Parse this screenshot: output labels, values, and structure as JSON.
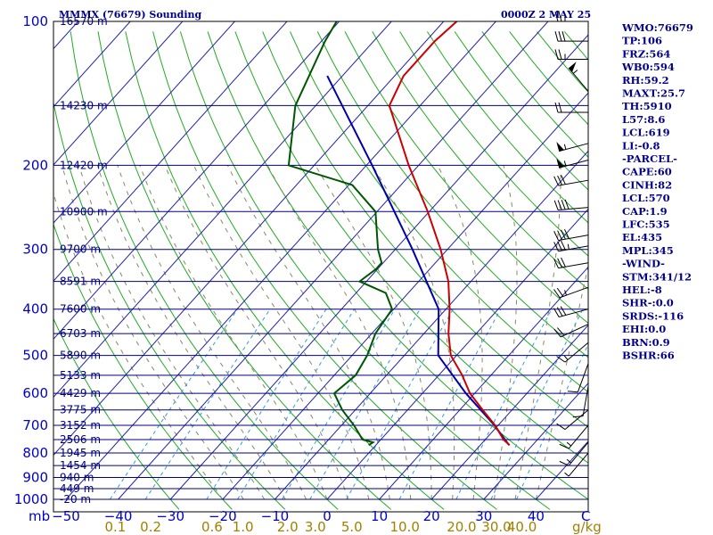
{
  "header": {
    "title": "MMMX (76679) Sounding",
    "time": "0000Z  2 MAY 25"
  },
  "indices": [
    "WMO:76679",
    "TP:106",
    "FRZ:564",
    "WB0:594",
    "RH:59.2",
    "MAXT:25.7",
    "TH:5910",
    "L57:8.6",
    "LCL:619",
    "LI:-0.8",
    "-PARCEL-",
    "CAPE:60",
    "CINH:82",
    "LCL:570",
    "CAP:1.9",
    "LFC:535",
    "EL:435",
    "MPL:345",
    "-WIND-",
    "STM:341/12",
    "HEL:-8",
    "SHR-:0.0",
    "SRDS:-116",
    "EHI:0.0",
    "BRN:0.9",
    "BSHR:66"
  ],
  "colors": {
    "frame": "#000000",
    "isobar": "#000080",
    "isotherm": "#2222aa",
    "dry_adiabat": "#22aa22",
    "moist_adiabat": "#888866",
    "mixing_ratio": "#3399dd",
    "temperature": "#cc0000",
    "dewpoint": "#005500",
    "parcel": "#0000aa"
  },
  "chart_data": {
    "type": "skew-t",
    "title": "MMMX (76679) Sounding",
    "time": "0000Z  2 MAY 25",
    "yaxis_unit": "mb",
    "pressure_levels": [
      100,
      200,
      300,
      400,
      500,
      600,
      700,
      800,
      900,
      1000
    ],
    "pressure_ticklabels": [
      "100",
      "200",
      "300",
      "400",
      "500",
      "600",
      "700",
      "800",
      "900",
      "1000"
    ],
    "temperature_ticks": [
      -50,
      -40,
      -30,
      -20,
      -10,
      0,
      10,
      20,
      30,
      40
    ],
    "temperature_ticklabels": [
      "−50",
      "−40",
      "−30",
      "−20",
      "−10",
      "0",
      "10",
      "20",
      "30",
      "40"
    ],
    "temperature_end_label": "C",
    "mixing_ratio_ticks": [
      "0.1",
      "0.2",
      "0.6",
      "1.0",
      "2.0",
      "3.0",
      "5.0",
      "10.0",
      "20.0",
      "30.0",
      "40.0"
    ],
    "mixing_ratio_unit": "g/kg",
    "heights": [
      {
        "p": 100,
        "label": "16570 m"
      },
      {
        "p": 150,
        "label": "14230 m"
      },
      {
        "p": 200,
        "label": "12420 m"
      },
      {
        "p": 250,
        "label": "10900 m"
      },
      {
        "p": 300,
        "label": "9700 m"
      },
      {
        "p": 350,
        "label": "8591 m"
      },
      {
        "p": 400,
        "label": "7600 m"
      },
      {
        "p": 450,
        "label": "6703 m"
      },
      {
        "p": 500,
        "label": "5890 m"
      },
      {
        "p": 550,
        "label": "5133 m"
      },
      {
        "p": 600,
        "label": "4429 m"
      },
      {
        "p": 650,
        "label": "3775 m"
      },
      {
        "p": 700,
        "label": "3152 m"
      },
      {
        "p": 750,
        "label": "2506 m"
      },
      {
        "p": 800,
        "label": "1945 m"
      },
      {
        "p": 850,
        "label": "1454 m"
      },
      {
        "p": 900,
        "label": "940 m"
      },
      {
        "p": 950,
        "label": "449 m"
      },
      {
        "p": 1000,
        "label": "-20 m"
      }
    ],
    "temperature": [
      [
        770,
        25.6
      ],
      [
        750,
        23.5
      ],
      [
        700,
        19.4
      ],
      [
        650,
        14.4
      ],
      [
        600,
        9.1
      ],
      [
        550,
        4.5
      ],
      [
        500,
        -1.1
      ],
      [
        450,
        -5.3
      ],
      [
        400,
        -9.3
      ],
      [
        350,
        -14.3
      ],
      [
        300,
        -21.3
      ],
      [
        250,
        -30.3
      ],
      [
        200,
        -41.9
      ],
      [
        150,
        -55.9
      ],
      [
        130,
        -58.3
      ],
      [
        110,
        -58.3
      ],
      [
        100,
        -57.5
      ]
    ],
    "dewpoint": [
      [
        770,
        -1.4
      ],
      [
        760,
        -1.0
      ],
      [
        750,
        -3.5
      ],
      [
        700,
        -7.6
      ],
      [
        650,
        -12.5
      ],
      [
        600,
        -16.9
      ],
      [
        550,
        -15.9
      ],
      [
        500,
        -17.1
      ],
      [
        450,
        -19.3
      ],
      [
        400,
        -20.3
      ],
      [
        370,
        -24.3
      ],
      [
        350,
        -31.3
      ],
      [
        330,
        -30.3
      ],
      [
        320,
        -30.3
      ],
      [
        300,
        -33.3
      ],
      [
        250,
        -40.3
      ],
      [
        220,
        -49.3
      ],
      [
        200,
        -64.9
      ],
      [
        150,
        -73.9
      ],
      [
        110,
        -79.3
      ],
      [
        100,
        -80.5
      ]
    ],
    "parcel": [
      [
        770,
        25.5
      ],
      [
        700,
        19.3
      ],
      [
        600,
        8.3
      ],
      [
        500,
        -3.5
      ],
      [
        400,
        -11.4
      ],
      [
        300,
        -26.7
      ],
      [
        200,
        -48.9
      ],
      [
        130,
        -72.9
      ]
    ],
    "wind_barbs": [
      {
        "p": 100,
        "dir": 270,
        "spd": 25
      },
      {
        "p": 110,
        "dir": 270,
        "spd": 30
      },
      {
        "p": 120,
        "dir": 270,
        "spd": 25
      },
      {
        "p": 140,
        "dir": 320,
        "spd": 55
      },
      {
        "p": 155,
        "dir": 270,
        "spd": 20
      },
      {
        "p": 180,
        "dir": 255,
        "spd": 55
      },
      {
        "p": 195,
        "dir": 255,
        "spd": 55
      },
      {
        "p": 215,
        "dir": 260,
        "spd": 30
      },
      {
        "p": 245,
        "dir": 265,
        "spd": 40
      },
      {
        "p": 280,
        "dir": 260,
        "spd": 40
      },
      {
        "p": 295,
        "dir": 260,
        "spd": 35
      },
      {
        "p": 320,
        "dir": 260,
        "spd": 30
      },
      {
        "p": 360,
        "dir": 250,
        "spd": 25
      },
      {
        "p": 400,
        "dir": 255,
        "spd": 30
      },
      {
        "p": 430,
        "dir": 245,
        "spd": 20
      },
      {
        "p": 470,
        "dir": 230,
        "spd": 15
      },
      {
        "p": 520,
        "dir": 200,
        "spd": 10
      },
      {
        "p": 580,
        "dir": 190,
        "spd": 10
      },
      {
        "p": 650,
        "dir": 230,
        "spd": 10
      },
      {
        "p": 700,
        "dir": 220,
        "spd": 15
      },
      {
        "p": 760,
        "dir": 220,
        "spd": 15
      },
      {
        "p": 800,
        "dir": 220,
        "spd": 5
      }
    ]
  }
}
